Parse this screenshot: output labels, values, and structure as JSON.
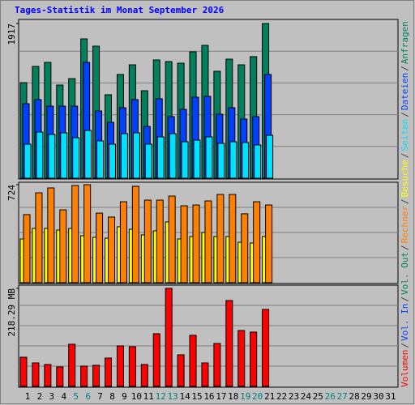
{
  "chart_data": [
    {
      "type": "bar",
      "title": "Tages-Statistik im Monat September 2026",
      "categories": [
        "1",
        "2",
        "3",
        "4",
        "5",
        "6",
        "7",
        "8",
        "9",
        "10",
        "11",
        "12",
        "13",
        "14",
        "15",
        "16",
        "17",
        "18",
        "19",
        "20",
        "21",
        "22",
        "23",
        "24",
        "25",
        "26",
        "27",
        "28",
        "29",
        "30",
        "31"
      ],
      "category_colors": [
        "#000000",
        "#000000",
        "#000000",
        "#000000",
        "#008080",
        "#008080",
        "#000000",
        "#000000",
        "#000000",
        "#000000",
        "#000000",
        "#008080",
        "#008080",
        "#000000",
        "#000000",
        "#000000",
        "#000000",
        "#000000",
        "#008080",
        "#008080",
        "#000000",
        "#000000",
        "#000000",
        "#000000",
        "#000000",
        "#008080",
        "#008080",
        "#000000",
        "#000000",
        "#000000",
        "#000000"
      ],
      "ylim": [
        0,
        1917
      ],
      "yticks": [
        1917
      ],
      "legend_separator": "/",
      "series": [
        {
          "name": "Anfragen",
          "color": "#00805c",
          "values": [
            1184,
            1385,
            1435,
            1154,
            1234,
            1726,
            1636,
            1034,
            1285,
            1405,
            1084,
            1465,
            1445,
            1425,
            1566,
            1646,
            1325,
            1475,
            1405,
            1506,
            1917,
            null,
            null,
            null,
            null,
            null,
            null,
            null,
            null,
            null,
            null
          ]
        },
        {
          "name": "Dateien",
          "color": "#0040ff",
          "values": [
            923,
            974,
            893,
            893,
            893,
            1435,
            833,
            693,
            873,
            974,
            642,
            984,
            763,
            853,
            1004,
            1014,
            793,
            873,
            733,
            763,
            1285,
            null,
            null,
            null,
            null,
            null,
            null,
            null,
            null,
            null,
            null
          ]
        },
        {
          "name": "Seiten",
          "color": "#00e0ff",
          "values": [
            422,
            572,
            542,
            562,
            502,
            592,
            462,
            422,
            552,
            562,
            422,
            512,
            552,
            452,
            472,
            512,
            432,
            452,
            442,
            412,
            532,
            null,
            null,
            null,
            null,
            null,
            null,
            null,
            null,
            null,
            null
          ]
        }
      ]
    },
    {
      "type": "bar",
      "ylim": [
        0,
        724
      ],
      "yticks": [
        724
      ],
      "series": [
        {
          "name": "Besuche",
          "color": "#ffff00",
          "values": [
            323,
            401,
            401,
            389,
            401,
            347,
            335,
            329,
            413,
            395,
            353,
            383,
            449,
            323,
            341,
            371,
            341,
            341,
            299,
            293,
            341,
            null,
            null,
            null,
            null,
            null,
            null,
            null,
            null,
            null,
            null
          ]
        },
        {
          "name": "Rechner",
          "color": "#ff8000",
          "values": [
            503,
            664,
            700,
            538,
            718,
            724,
            514,
            485,
            598,
            712,
            610,
            610,
            640,
            568,
            574,
            604,
            652,
            652,
            509,
            598,
            574,
            null,
            null,
            null,
            null,
            null,
            null,
            null,
            null,
            null,
            null
          ]
        }
      ]
    },
    {
      "type": "bar",
      "ylim": [
        0,
        218.29
      ],
      "yticks": [
        {
          "value": 218.29,
          "label": "218.29 MB"
        }
      ],
      "series": [
        {
          "name": "Vol. Out",
          "color": "#00805c",
          "values": [
            null,
            null,
            null,
            null,
            null,
            null,
            null,
            null,
            null,
            null,
            null,
            null,
            null,
            null,
            null,
            null,
            null,
            null,
            null,
            null,
            null,
            null,
            null,
            null,
            null,
            null,
            null,
            null,
            null,
            null,
            null
          ]
        },
        {
          "name": "Vol. In",
          "color": "#0040ff",
          "values": [
            null,
            null,
            null,
            null,
            null,
            null,
            null,
            null,
            null,
            null,
            null,
            null,
            null,
            null,
            null,
            null,
            null,
            null,
            null,
            null,
            null,
            null,
            null,
            null,
            null,
            null,
            null,
            null,
            null,
            null,
            null
          ]
        },
        {
          "name": "Volumen",
          "color": "#ff0000",
          "values": [
            64.9,
            52.3,
            48.7,
            43.3,
            93.8,
            45.1,
            46.9,
            63.1,
            90.2,
            88.4,
            48.7,
            117.3,
            218.29,
            70.4,
            113.7,
            52.3,
            95.6,
            191.2,
            124.5,
            120.9,
            171.4,
            null,
            null,
            null,
            null,
            null,
            null,
            null,
            null,
            null,
            null
          ]
        }
      ]
    }
  ]
}
